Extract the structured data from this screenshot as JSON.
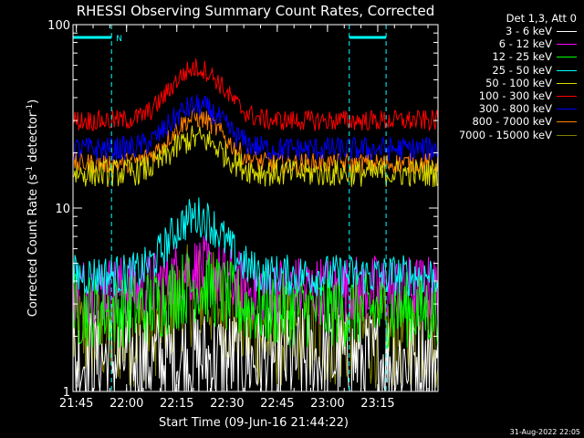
{
  "chart_data": {
    "type": "line",
    "title": "RHESSI Observing Summary Count Rates, Corrected",
    "ylabel": "Corrected Count Rate (s",
    "ylabel_sup1": "-1",
    "ylabel_mid": " detector",
    "ylabel_sup2": "-1",
    "ylabel_end": ")",
    "xlabel": "Start Time (09-Jun-16 21:44:22)",
    "footer": "31-Aug-2022 22:05",
    "yscale": "log",
    "ylim": [
      1,
      100
    ],
    "xlim_minutes": [
      0,
      109
    ],
    "x_ticks": [
      {
        "m": 1,
        "label": "21:45"
      },
      {
        "m": 16,
        "label": "22:00"
      },
      {
        "m": 31,
        "label": "22:15"
      },
      {
        "m": 46,
        "label": "22:30"
      },
      {
        "m": 61,
        "label": "22:45"
      },
      {
        "m": 76,
        "label": "23:00"
      },
      {
        "m": 91,
        "label": "23:15"
      }
    ],
    "y_ticks": [
      {
        "v": 1,
        "label": "1"
      },
      {
        "v": 10,
        "label": "10"
      },
      {
        "v": 100,
        "label": "100"
      }
    ],
    "legend_title": "Det 1,3, Att 0",
    "night_flag_label": "N",
    "night_intervals": [
      [
        0,
        11.5
      ],
      [
        82.5,
        93.5
      ]
    ],
    "series": [
      {
        "name": "3 - 6 keV",
        "color": "#ffffff",
        "base": 1.5,
        "peak": 1.5,
        "noise": 0.3
      },
      {
        "name": "6 - 12 keV",
        "color": "#ff00ff",
        "base": 3.6,
        "peak": 4.6,
        "noise": 0.2
      },
      {
        "name": "12 - 25 keV",
        "color": "#00ff00",
        "base": 2.8,
        "peak": 3.8,
        "noise": 0.22
      },
      {
        "name": "25 - 50 keV",
        "color": "#00ffff",
        "base": 4.3,
        "peak": 9.0,
        "noise": 0.12
      },
      {
        "name": "50 - 100 keV",
        "color": "#dddd00",
        "base": 15.5,
        "peak": 24.0,
        "noise": 0.08
      },
      {
        "name": "100 - 300 keV",
        "color": "#ff0000",
        "base": 30.0,
        "peak": 58.0,
        "noise": 0.06
      },
      {
        "name": "300 - 800 keV",
        "color": "#0000ff",
        "base": 21.0,
        "peak": 36.0,
        "noise": 0.07
      },
      {
        "name": "800 - 7000 keV",
        "color": "#ff8000",
        "base": 17.5,
        "peak": 31.0,
        "noise": 0.06
      },
      {
        "name": "7000 - 15000 keV",
        "color": "#808000",
        "base": 2.0,
        "peak": 3.4,
        "noise": 0.3
      }
    ],
    "peak_time_minutes": 37,
    "peak_width_minutes": 10
  }
}
